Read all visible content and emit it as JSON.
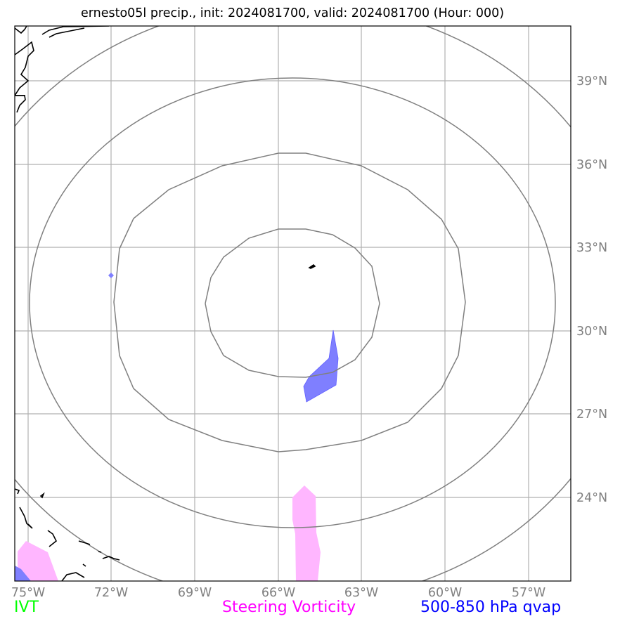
{
  "title": "ernesto05l precip., init: 2024081700, valid: 2024081700 (Hour: 000)",
  "map": {
    "lon_range": [
      -76,
      -56
    ],
    "lat_range": [
      21,
      41
    ],
    "lon_ticks": [
      "75°W",
      "72°W",
      "69°W",
      "66°W",
      "63°W",
      "60°W",
      "57°W"
    ],
    "lat_ticks": [
      "39°N",
      "36°N",
      "33°N",
      "30°N",
      "27°N",
      "24°N"
    ],
    "gridlines": true,
    "center": {
      "lon": -66,
      "lat": 31
    }
  },
  "legend": {
    "ivt": {
      "label": "IVT",
      "color": "#00ff00"
    },
    "vorticity": {
      "label": "Steering Vorticity",
      "color": "#ff00ff"
    },
    "qvap": {
      "label": "500-850 hPa qvap",
      "color": "#0000ff"
    }
  },
  "colors": {
    "grid": "#b0b0b0",
    "rings": "#808080",
    "coast": "#000000",
    "vorticity_fill": "#ffb6ff",
    "qvap_fill": "#7f7fff"
  }
}
